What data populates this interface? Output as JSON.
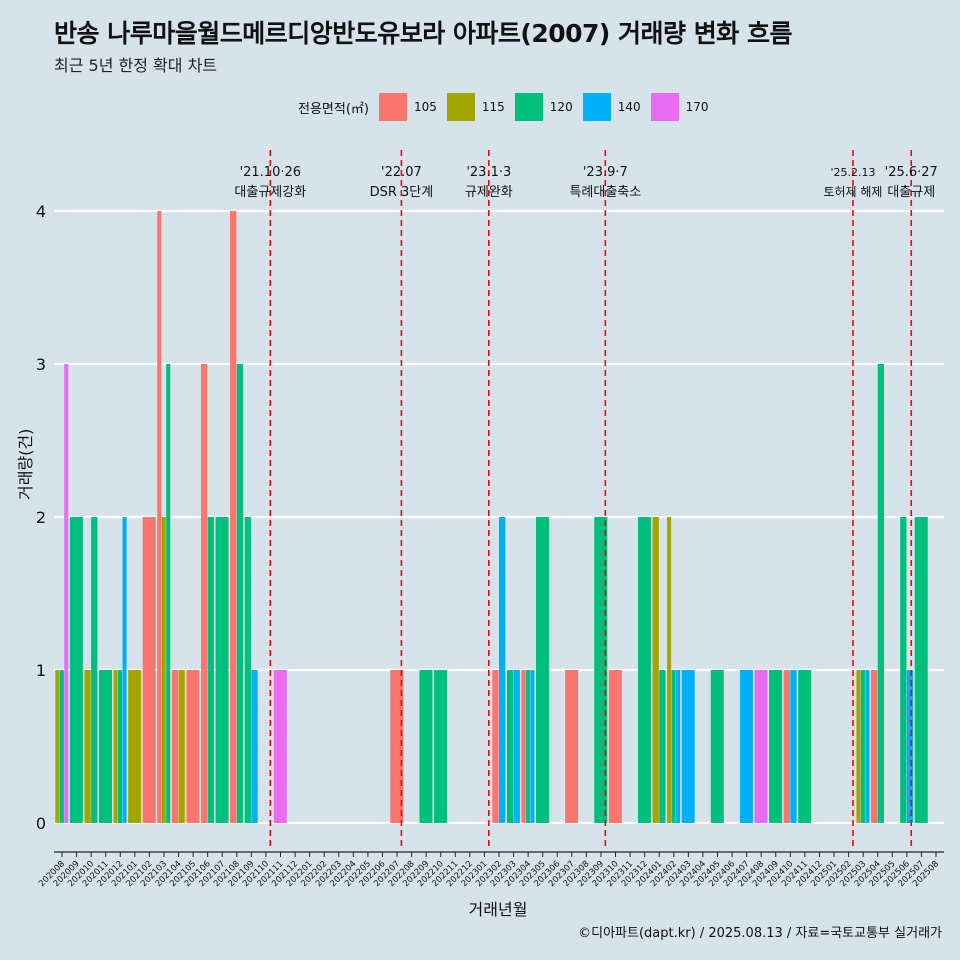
{
  "title": "반송 나루마을월드메르디앙반도유보라 아파트(2007) 거래량 변화 흐름",
  "subtitle": "최근 5년 한정 확대 차트",
  "caption": "©디아파트(dapt.kr) / 2025.08.13 / 자료=국토교통부 실거래가",
  "legend": {
    "title": "전용면적(㎡)",
    "items": [
      {
        "label": "105",
        "color": "#f8766d"
      },
      {
        "label": "115",
        "color": "#a3a500"
      },
      {
        "label": "120",
        "color": "#00bf7d"
      },
      {
        "label": "140",
        "color": "#00b0f6"
      },
      {
        "label": "170",
        "color": "#e76bf3"
      }
    ]
  },
  "chart_data": {
    "type": "bar",
    "xlabel": "거래년월",
    "ylabel": "거래량(건)",
    "ylim": [
      0,
      4
    ],
    "yticks": [
      0,
      1,
      2,
      3,
      4
    ],
    "grid": true,
    "legend_position": "top",
    "categories": [
      "202008",
      "202009",
      "202010",
      "202011",
      "202012",
      "202101",
      "202102",
      "202103",
      "202104",
      "202105",
      "202106",
      "202107",
      "202108",
      "202109",
      "202110",
      "202111",
      "202112",
      "202201",
      "202202",
      "202203",
      "202204",
      "202205",
      "202206",
      "202207",
      "202208",
      "202209",
      "202210",
      "202211",
      "202212",
      "202301",
      "202302",
      "202303",
      "202304",
      "202305",
      "202306",
      "202307",
      "202308",
      "202309",
      "202310",
      "202311",
      "202312",
      "202401",
      "202402",
      "202403",
      "202404",
      "202405",
      "202406",
      "202407",
      "202408",
      "202409",
      "202410",
      "202411",
      "202412",
      "202501",
      "202502",
      "202503",
      "202504",
      "202505",
      "202506",
      "202507",
      "202508"
    ],
    "series": [
      {
        "name": "105",
        "color": "#f8766d",
        "values": [
          0,
          0,
          0,
          0,
          0,
          0,
          2,
          4,
          1,
          1,
          3,
          0,
          4,
          0,
          0,
          0,
          0,
          0,
          0,
          0,
          0,
          0,
          0,
          1,
          0,
          0,
          0,
          0,
          0,
          0,
          1,
          0,
          1,
          0,
          0,
          1,
          0,
          0,
          1,
          0,
          0,
          0,
          0,
          0,
          0,
          0,
          0,
          0,
          0,
          0,
          1,
          0,
          0,
          0,
          0,
          0,
          1,
          0,
          0,
          0,
          0
        ]
      },
      {
        "name": "115",
        "color": "#a3a500",
        "values": [
          1,
          0,
          1,
          0,
          1,
          1,
          0,
          2,
          1,
          0,
          0,
          0,
          0,
          0,
          0,
          0,
          0,
          0,
          0,
          0,
          0,
          0,
          0,
          0,
          0,
          0,
          0,
          0,
          0,
          0,
          0,
          0,
          0,
          0,
          0,
          0,
          0,
          0,
          0,
          0,
          0,
          2,
          2,
          0,
          0,
          0,
          0,
          0,
          0,
          0,
          0,
          0,
          0,
          0,
          0,
          1,
          0,
          0,
          0,
          0,
          0
        ]
      },
      {
        "name": "120",
        "color": "#00bf7d",
        "values": [
          1,
          2,
          2,
          1,
          1,
          0,
          0,
          3,
          0,
          0,
          2,
          2,
          3,
          2,
          0,
          0,
          0,
          0,
          0,
          0,
          0,
          0,
          0,
          0,
          0,
          1,
          1,
          0,
          0,
          0,
          0,
          1,
          1,
          2,
          0,
          0,
          0,
          2,
          0,
          0,
          2,
          1,
          1,
          0,
          0,
          1,
          0,
          0,
          0,
          1,
          0,
          1,
          0,
          0,
          0,
          1,
          3,
          0,
          2,
          2,
          0
        ]
      },
      {
        "name": "140",
        "color": "#00b0f6",
        "values": [
          0,
          0,
          0,
          0,
          2,
          0,
          0,
          0,
          0,
          0,
          0,
          0,
          0,
          1,
          0,
          0,
          0,
          0,
          0,
          0,
          0,
          0,
          0,
          0,
          0,
          0,
          0,
          0,
          0,
          0,
          2,
          1,
          1,
          0,
          0,
          0,
          0,
          0,
          0,
          0,
          0,
          0,
          1,
          1,
          0,
          0,
          0,
          1,
          0,
          0,
          1,
          0,
          0,
          0,
          0,
          1,
          0,
          0,
          1,
          0,
          0
        ]
      },
      {
        "name": "170",
        "color": "#e76bf3",
        "values": [
          3,
          0,
          0,
          0,
          0,
          0,
          0,
          0,
          0,
          0,
          0,
          0,
          0,
          0,
          0,
          1,
          0,
          0,
          0,
          0,
          0,
          0,
          0,
          0,
          0,
          0,
          0,
          0,
          0,
          0,
          0,
          0,
          0,
          0,
          0,
          0,
          0,
          0,
          0,
          0,
          0,
          0,
          0,
          0,
          0,
          0,
          0,
          0,
          1,
          0,
          0,
          0,
          0,
          0,
          0,
          0,
          0,
          0,
          0,
          0,
          0
        ]
      }
    ],
    "events": [
      {
        "date": "202110",
        "date_label": "'21.10·26",
        "label": "대출규제강화"
      },
      {
        "date": "202207",
        "date_label": "'22.07",
        "label": "DSR 3단계"
      },
      {
        "date": "202301",
        "date_label": "'23.1·3",
        "label": "규제완화"
      },
      {
        "date": "202309",
        "date_label": "'23.9·7",
        "label": "특례대출축소"
      },
      {
        "date": "202502",
        "date_label": "'25.2.13",
        "label": "토허제 해제"
      },
      {
        "date": "202506",
        "date_label": "'25.6·27",
        "label": "대출규제"
      }
    ]
  }
}
